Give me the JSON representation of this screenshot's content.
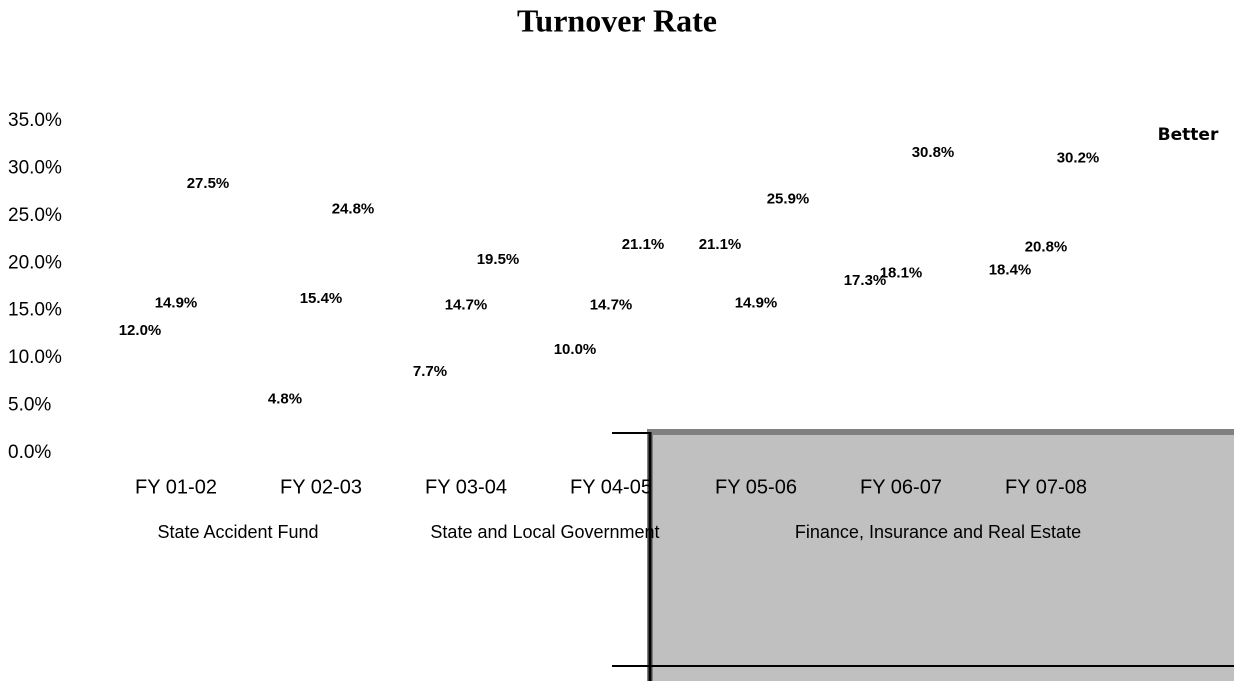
{
  "chart_data": {
    "type": "label",
    "title": "Turnover Rate",
    "annotation": "Better",
    "categories": [
      "FY 01-02",
      "FY 02-03",
      "FY 03-04",
      "FY 04-05",
      "FY 05-06",
      "FY 06-07",
      "FY 07-08"
    ],
    "series": [
      {
        "name": "State Accident Fund",
        "values": [
          12.0,
          4.8,
          7.7,
          10.0,
          21.1,
          17.3,
          18.4
        ],
        "value_labels": [
          "12.0%",
          "4.8%",
          "7.7%",
          "10.0%",
          "21.1%",
          "17.3%",
          "18.4%"
        ]
      },
      {
        "name": "State and Local Government",
        "values": [
          14.9,
          15.4,
          14.7,
          14.7,
          14.9,
          18.1,
          20.8
        ],
        "value_labels": [
          "14.9%",
          "15.4%",
          "14.7%",
          "14.7%",
          "14.9%",
          "18.1%",
          "20.8%"
        ]
      },
      {
        "name": "Finance, Insurance and Real Estate",
        "values": [
          27.5,
          24.8,
          19.5,
          21.1,
          25.9,
          30.8,
          30.2
        ],
        "value_labels": [
          "27.5%",
          "24.8%",
          "19.5%",
          "21.1%",
          "25.9%",
          "30.8%",
          "30.2%"
        ]
      }
    ],
    "ylim": [
      0,
      35
    ],
    "yticks": [
      {
        "value": 0,
        "label": "0.0%"
      },
      {
        "value": 5,
        "label": "5.0%"
      },
      {
        "value": 10,
        "label": "10.0%"
      },
      {
        "value": 15,
        "label": "15.0%"
      },
      {
        "value": 20,
        "label": "20.0%"
      },
      {
        "value": 25,
        "label": "25.0%"
      },
      {
        "value": 30,
        "label": "30.0%"
      },
      {
        "value": 35,
        "label": "35.0%"
      }
    ]
  }
}
